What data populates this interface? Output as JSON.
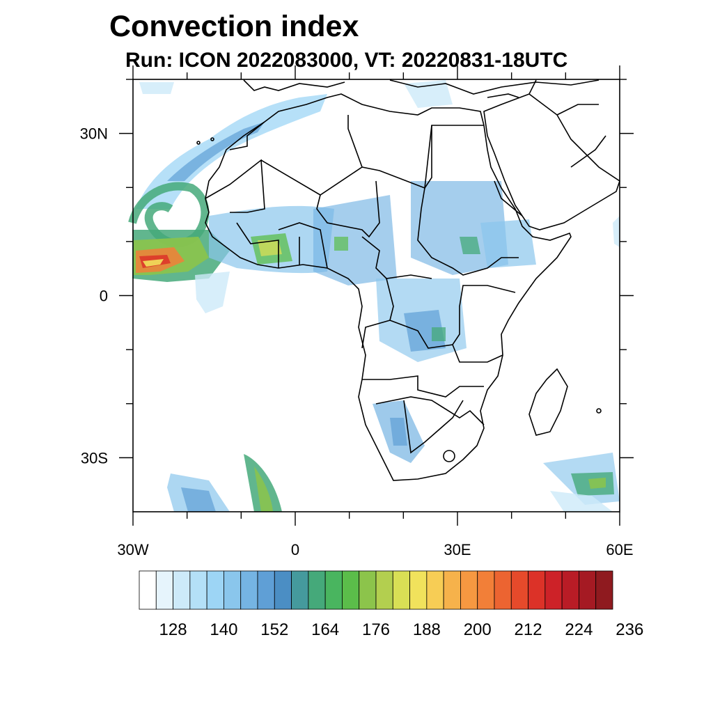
{
  "title": "Convection index",
  "subtitle": "Run: ICON 2022083000,  VT: 20220831-18UTC",
  "map": {
    "region": "Africa",
    "lon_range": [
      -30,
      60
    ],
    "lat_range": [
      -40,
      40
    ],
    "lat_ticks": [
      {
        "lat": 30,
        "label": "30N"
      },
      {
        "lat": 0,
        "label": "0"
      },
      {
        "lat": -30,
        "label": "30S"
      }
    ],
    "lon_ticks": [
      {
        "lon": -30,
        "label": "30W"
      },
      {
        "lon": 0,
        "label": "0"
      },
      {
        "lon": 30,
        "label": "30E"
      },
      {
        "lon": 60,
        "label": "60E"
      }
    ]
  },
  "colorbar": {
    "colors": [
      "#ffffff",
      "#e6f4fc",
      "#cdeaf9",
      "#b4e0f7",
      "#9dd5f5",
      "#8ac6ec",
      "#75b4e3",
      "#5f9fd6",
      "#4b8ec4",
      "#459a9d",
      "#45a97a",
      "#49b55f",
      "#5bbd4a",
      "#8cc44b",
      "#b3cf4f",
      "#d9df55",
      "#f1e25c",
      "#f7cd55",
      "#f6b24b",
      "#f69841",
      "#f27f38",
      "#ec6431",
      "#e64a2b",
      "#dc3228",
      "#cd2228",
      "#b91c26",
      "#a51a23",
      "#8f1a1f"
    ],
    "labels": [
      "128",
      "140",
      "152",
      "164",
      "176",
      "188",
      "200",
      "212",
      "224",
      "236"
    ],
    "label_start_index": 2,
    "label_step": 3
  }
}
